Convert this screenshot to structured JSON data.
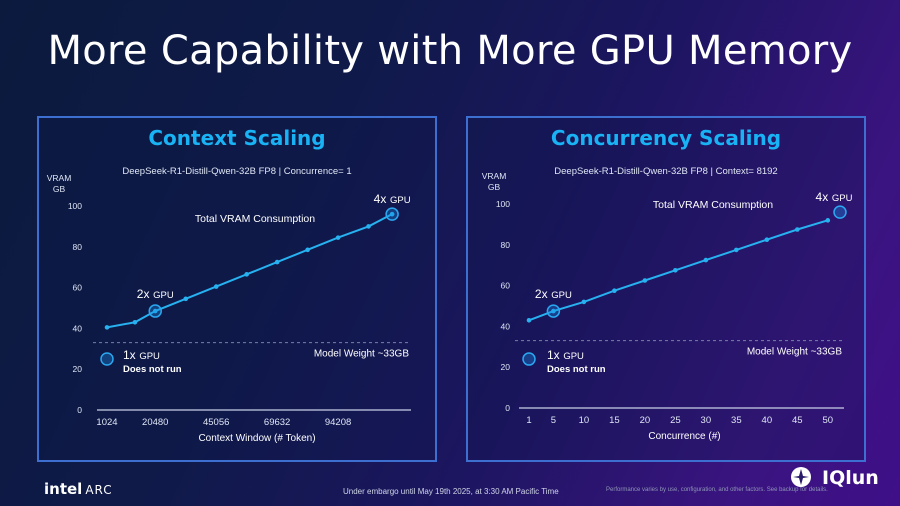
{
  "title": "More Capability with More GPU Memory",
  "footer": {
    "brand": "intel",
    "product": "ARC",
    "embargo": "Under embargo until May 19th 2025, at 3:30 AM Pacific Time",
    "disclaimer": "Performance varies by use, configuration, and other factors. See backup for details.",
    "watermark": "IQlun"
  },
  "colors": {
    "accent": "#19b3f5",
    "line": "#27b1f0",
    "panel_border": "#3d6fd0"
  },
  "chart_data": [
    {
      "type": "line",
      "title": "Context Scaling",
      "subtitle": "DeepSeek-R1-Distill-Qwen-32B FP8 | Concurrence= 1",
      "ylabel": "VRAM GB",
      "xlabel": "Context Window (# Token)",
      "x": [
        1024,
        12288,
        20480,
        32768,
        45056,
        57344,
        69632,
        81920,
        94208,
        106496,
        116000
      ],
      "x_ticks": [
        "1024",
        "20480",
        "45056",
        "69632",
        "94208"
      ],
      "x_tick_values": [
        1024,
        20480,
        45056,
        69632,
        94208
      ],
      "xlim": [
        1024,
        122000
      ],
      "series": [
        {
          "values": [
            40.5,
            43,
            48.5,
            54.5,
            60.5,
            66.5,
            72.5,
            78.5,
            84.5,
            90,
            96
          ]
        }
      ],
      "ylim": [
        0,
        100
      ],
      "y_ticks": [
        "0",
        "20",
        "40",
        "60",
        "80",
        "100"
      ],
      "series_label": "Total VRAM Consumption",
      "reference_line": {
        "value": 33,
        "label": "Model Weight ~33GB"
      },
      "annotations": [
        {
          "x": 1024,
          "y": 25,
          "count": "1x",
          "unit": "GPU",
          "note": "Does not run"
        },
        {
          "x": 20480,
          "y": 48.5,
          "count": "2x",
          "unit": "GPU",
          "note": ""
        },
        {
          "x": 116000,
          "y": 96,
          "count": "4x",
          "unit": "GPU",
          "note": ""
        }
      ]
    },
    {
      "type": "line",
      "title": "Concurrency Scaling",
      "subtitle": "DeepSeek-R1-Distill-Qwen-32B FP8 | Context= 8192",
      "ylabel": "VRAM GB",
      "xlabel": "Concurrence (#)",
      "x": [
        1,
        5,
        10,
        15,
        20,
        25,
        30,
        35,
        40,
        45,
        50
      ],
      "x_ticks": [
        "1",
        "5",
        "10",
        "15",
        "20",
        "25",
        "30",
        "35",
        "40",
        "45",
        "50"
      ],
      "x_tick_values": [
        1,
        5,
        10,
        15,
        20,
        25,
        30,
        35,
        40,
        45,
        50
      ],
      "xlim": [
        1,
        52
      ],
      "series": [
        {
          "values": [
            43,
            47.5,
            52,
            57.5,
            62.5,
            67.5,
            72.5,
            77.5,
            82.5,
            87.5,
            92
          ]
        }
      ],
      "ylim": [
        0,
        100
      ],
      "y_ticks": [
        "0",
        "20",
        "40",
        "60",
        "80",
        "100"
      ],
      "series_label": "Total VRAM Consumption",
      "reference_line": {
        "value": 33,
        "label": "Model Weight ~33GB"
      },
      "annotations": [
        {
          "x": 1,
          "y": 24,
          "count": "1x",
          "unit": "GPU",
          "note": "Does not run"
        },
        {
          "x": 5,
          "y": 47.5,
          "count": "2x",
          "unit": "GPU",
          "note": ""
        },
        {
          "x": 52,
          "y": 96,
          "count": "4x",
          "unit": "GPU",
          "note": ""
        }
      ]
    }
  ]
}
